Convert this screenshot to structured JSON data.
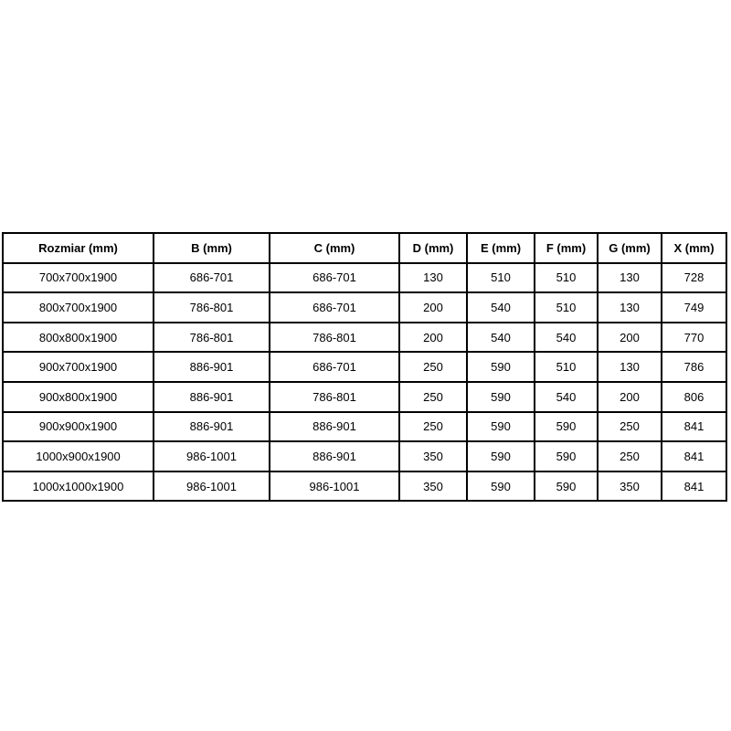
{
  "page": {
    "background": "#ffffff"
  },
  "table": {
    "name": "shower-enclosure-dimensions-table",
    "border_color": "#000000",
    "text_color": "#000000",
    "background": "#ffffff",
    "columns": [
      "Rozmiar (mm)",
      "B (mm)",
      "C (mm)",
      "D (mm)",
      "E (mm)",
      "F (mm)",
      "G (mm)",
      "X (mm)"
    ],
    "rows": [
      [
        "700x700x1900",
        "686-701",
        "686-701",
        "130",
        "510",
        "510",
        "130",
        "728"
      ],
      [
        "800x700x1900",
        "786-801",
        "686-701",
        "200",
        "540",
        "510",
        "130",
        "749"
      ],
      [
        "800x800x1900",
        "786-801",
        "786-801",
        "200",
        "540",
        "540",
        "200",
        "770"
      ],
      [
        "900x700x1900",
        "886-901",
        "686-701",
        "250",
        "590",
        "510",
        "130",
        "786"
      ],
      [
        "900x800x1900",
        "886-901",
        "786-801",
        "250",
        "590",
        "540",
        "200",
        "806"
      ],
      [
        "900x900x1900",
        "886-901",
        "886-901",
        "250",
        "590",
        "590",
        "250",
        "841"
      ],
      [
        "1000x900x1900",
        "986-1001",
        "886-901",
        "350",
        "590",
        "590",
        "250",
        "841"
      ],
      [
        "1000x1000x1900",
        "986-1001",
        "986-1001",
        "350",
        "590",
        "590",
        "350",
        "841"
      ]
    ]
  }
}
